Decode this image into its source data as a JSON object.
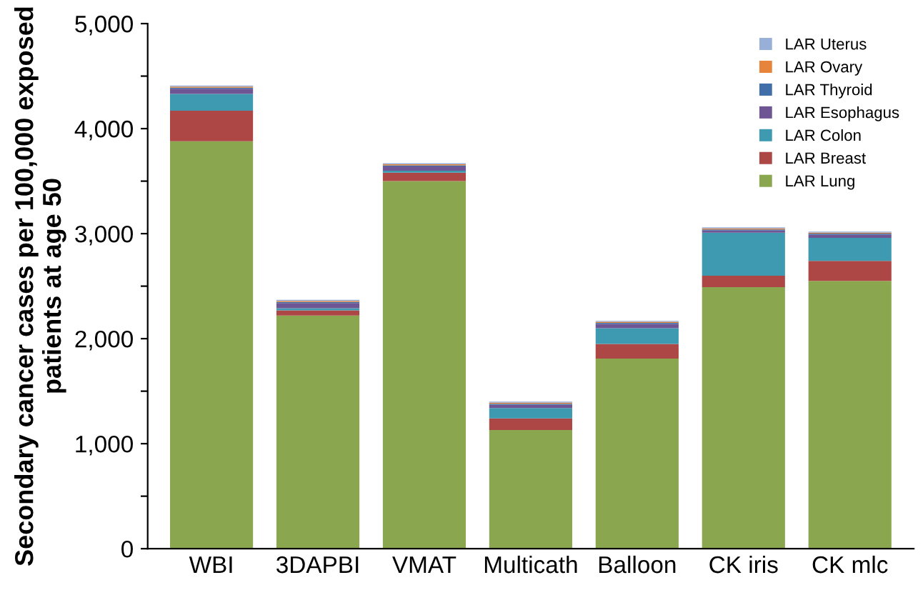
{
  "chart_data": {
    "type": "bar",
    "stacked": true,
    "ylabel": "Secondary cancer cases per 100,000 exposed\npatients at age 50",
    "categories": [
      "WBI",
      "3DAPBI",
      "VMAT",
      "Multicath",
      "Balloon",
      "CK iris",
      "CK mlc"
    ],
    "ylim": [
      0,
      5000
    ],
    "yticks": [
      {
        "value": 0,
        "label": "0"
      },
      {
        "value": 500,
        "label": null
      },
      {
        "value": 1000,
        "label": "1,000"
      },
      {
        "value": 1500,
        "label": null
      },
      {
        "value": 2000,
        "label": "2,000"
      },
      {
        "value": 2500,
        "label": null
      },
      {
        "value": 3000,
        "label": "3,000"
      },
      {
        "value": 3500,
        "label": null
      },
      {
        "value": 4000,
        "label": "4,000"
      },
      {
        "value": 4500,
        "label": null
      },
      {
        "value": 5000,
        "label": "5,000"
      }
    ],
    "legend": "top right",
    "grid": false,
    "series": [
      {
        "name": "LAR Lung",
        "color": "#8aa64f",
        "values": [
          3880,
          2220,
          3500,
          1130,
          1810,
          2490,
          2550
        ]
      },
      {
        "name": "LAR Breast",
        "color": "#ac4745",
        "values": [
          290,
          50,
          80,
          110,
          140,
          110,
          190
        ]
      },
      {
        "name": "LAR Colon",
        "color": "#3e9ab0",
        "values": [
          160,
          20,
          20,
          100,
          150,
          410,
          220
        ]
      },
      {
        "name": "LAR Esophagus",
        "color": "#6e5593",
        "values": [
          50,
          50,
          40,
          30,
          40,
          20,
          30
        ]
      },
      {
        "name": "LAR Thyroid",
        "color": "#3f6ea8",
        "values": [
          10,
          10,
          10,
          10,
          10,
          10,
          10
        ]
      },
      {
        "name": "LAR Ovary",
        "color": "#e5843a",
        "values": [
          10,
          10,
          10,
          10,
          10,
          10,
          10
        ]
      },
      {
        "name": "LAR Uterus",
        "color": "#98afd7",
        "values": [
          10,
          10,
          10,
          10,
          10,
          10,
          10
        ]
      }
    ]
  }
}
